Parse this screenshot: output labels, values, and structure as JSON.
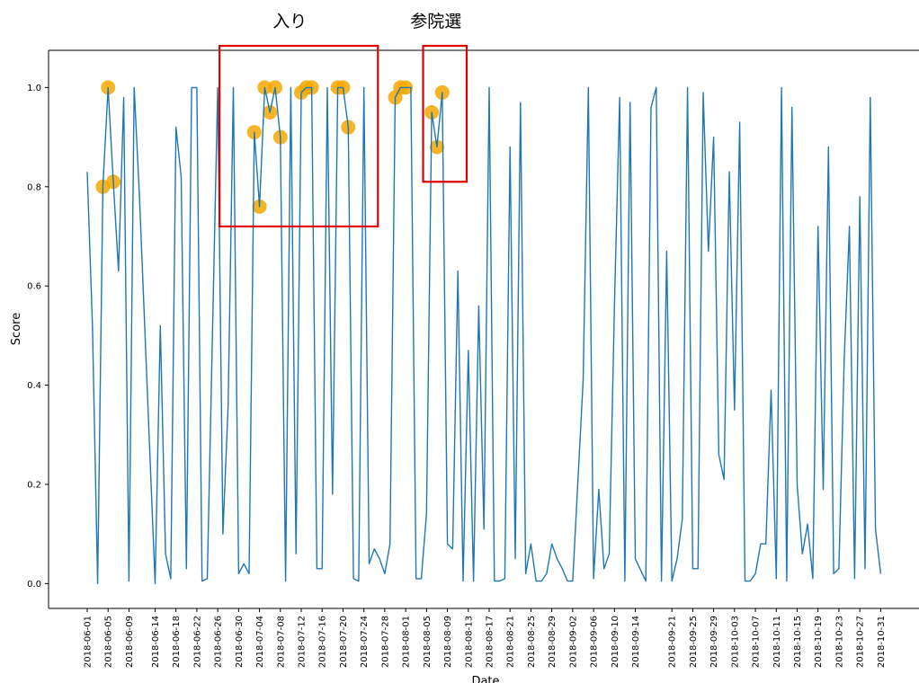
{
  "chart_data": {
    "type": "line",
    "title": "",
    "xlabel": "Date",
    "ylabel": "Score",
    "x_start": "2018-06-01",
    "x_end": "2018-11-02",
    "ylim": [
      -0.05,
      1.075
    ],
    "grid": false,
    "legend": "none",
    "line_color": "#1f77b4",
    "highlight_color": "#f5a800",
    "box_color": "#e00000",
    "x_ticks": [
      "2018-06-01",
      "2018-06-05",
      "2018-06-09",
      "2018-06-14",
      "2018-06-18",
      "2018-06-22",
      "2018-06-26",
      "2018-06-30",
      "2018-07-04",
      "2018-07-08",
      "2018-07-12",
      "2018-07-16",
      "2018-07-20",
      "2018-07-24",
      "2018-07-28",
      "2018-08-01",
      "2018-08-05",
      "2018-08-09",
      "2018-08-13",
      "2018-08-17",
      "2018-08-21",
      "2018-08-25",
      "2018-08-29",
      "2018-09-02",
      "2018-09-06",
      "2018-09-10",
      "2018-09-14",
      "2018-09-21",
      "2018-09-25",
      "2018-09-29",
      "2018-10-03",
      "2018-10-07",
      "2018-10-11",
      "2018-10-15",
      "2018-10-19",
      "2018-10-23",
      "2018-10-27",
      "2018-10-31"
    ],
    "y_ticks": [
      "0.0",
      "0.2",
      "0.4",
      "0.6",
      "0.8",
      "1.0"
    ],
    "y_tick_values": [
      0,
      0.2,
      0.4,
      0.6,
      0.8,
      1.0
    ],
    "series": [
      {
        "values": [
          [
            "2018-06-01",
            0.83
          ],
          [
            "2018-06-02",
            0.52
          ],
          [
            "2018-06-03",
            0.0
          ],
          [
            "2018-06-04",
            0.8
          ],
          [
            "2018-06-05",
            1.0
          ],
          [
            "2018-06-06",
            0.81
          ],
          [
            "2018-06-07",
            0.63
          ],
          [
            "2018-06-08",
            0.98
          ],
          [
            "2018-06-09",
            0.005
          ],
          [
            "2018-06-10",
            1.0
          ],
          [
            "2018-06-11",
            0.78
          ],
          [
            "2018-06-12",
            0.52
          ],
          [
            "2018-06-14",
            0.0
          ],
          [
            "2018-06-15",
            0.52
          ],
          [
            "2018-06-16",
            0.06
          ],
          [
            "2018-06-17",
            0.01
          ],
          [
            "2018-06-18",
            0.92
          ],
          [
            "2018-06-19",
            0.82
          ],
          [
            "2018-06-20",
            0.03
          ],
          [
            "2018-06-21",
            1.0
          ],
          [
            "2018-06-22",
            1.0
          ],
          [
            "2018-06-23",
            0.005
          ],
          [
            "2018-06-24",
            0.01
          ],
          [
            "2018-06-26",
            1.0
          ],
          [
            "2018-06-27",
            0.1
          ],
          [
            "2018-06-28",
            0.36
          ],
          [
            "2018-06-29",
            1.0
          ],
          [
            "2018-06-30",
            0.02
          ],
          [
            "2018-07-01",
            0.04
          ],
          [
            "2018-07-02",
            0.02
          ],
          [
            "2018-07-03",
            0.91
          ],
          [
            "2018-07-04",
            0.76
          ],
          [
            "2018-07-05",
            1.0
          ],
          [
            "2018-07-06",
            0.95
          ],
          [
            "2018-07-07",
            1.0
          ],
          [
            "2018-07-08",
            0.9
          ],
          [
            "2018-07-09",
            0.005
          ],
          [
            "2018-07-10",
            1.0
          ],
          [
            "2018-07-11",
            0.06
          ],
          [
            "2018-07-12",
            0.99
          ],
          [
            "2018-07-13",
            1.0
          ],
          [
            "2018-07-14",
            1.0
          ],
          [
            "2018-07-15",
            0.03
          ],
          [
            "2018-07-16",
            0.03
          ],
          [
            "2018-07-17",
            1.0
          ],
          [
            "2018-07-18",
            0.18
          ],
          [
            "2018-07-19",
            1.0
          ],
          [
            "2018-07-20",
            1.0
          ],
          [
            "2018-07-21",
            0.92
          ],
          [
            "2018-07-22",
            0.01
          ],
          [
            "2018-07-23",
            0.005
          ],
          [
            "2018-07-24",
            1.0
          ],
          [
            "2018-07-25",
            0.04
          ],
          [
            "2018-07-26",
            0.07
          ],
          [
            "2018-07-27",
            0.05
          ],
          [
            "2018-07-28",
            0.02
          ],
          [
            "2018-07-29",
            0.08
          ],
          [
            "2018-07-30",
            0.98
          ],
          [
            "2018-07-31",
            1.0
          ],
          [
            "2018-08-01",
            1.0
          ],
          [
            "2018-08-02",
            1.0
          ],
          [
            "2018-08-03",
            0.01
          ],
          [
            "2018-08-04",
            0.01
          ],
          [
            "2018-08-05",
            0.14
          ],
          [
            "2018-08-06",
            0.95
          ],
          [
            "2018-08-07",
            0.88
          ],
          [
            "2018-08-08",
            0.99
          ],
          [
            "2018-08-09",
            0.08
          ],
          [
            "2018-08-10",
            0.07
          ],
          [
            "2018-08-11",
            0.63
          ],
          [
            "2018-08-12",
            0.005
          ],
          [
            "2018-08-13",
            0.47
          ],
          [
            "2018-08-14",
            0.005
          ],
          [
            "2018-08-15",
            0.56
          ],
          [
            "2018-08-16",
            0.11
          ],
          [
            "2018-08-17",
            1.0
          ],
          [
            "2018-08-18",
            0.005
          ],
          [
            "2018-08-19",
            0.005
          ],
          [
            "2018-08-20",
            0.01
          ],
          [
            "2018-08-21",
            0.88
          ],
          [
            "2018-08-22",
            0.05
          ],
          [
            "2018-08-23",
            0.97
          ],
          [
            "2018-08-24",
            0.02
          ],
          [
            "2018-08-25",
            0.08
          ],
          [
            "2018-08-26",
            0.005
          ],
          [
            "2018-08-27",
            0.005
          ],
          [
            "2018-08-28",
            0.02
          ],
          [
            "2018-08-29",
            0.08
          ],
          [
            "2018-08-30",
            0.05
          ],
          [
            "2018-08-31",
            0.03
          ],
          [
            "2018-09-01",
            0.005
          ],
          [
            "2018-09-02",
            0.005
          ],
          [
            "2018-09-04",
            0.41
          ],
          [
            "2018-09-05",
            1.0
          ],
          [
            "2018-09-06",
            0.01
          ],
          [
            "2018-09-07",
            0.19
          ],
          [
            "2018-09-08",
            0.03
          ],
          [
            "2018-09-09",
            0.06
          ],
          [
            "2018-09-10",
            0.56
          ],
          [
            "2018-09-11",
            0.98
          ],
          [
            "2018-09-12",
            0.005
          ],
          [
            "2018-09-13",
            0.97
          ],
          [
            "2018-09-14",
            0.05
          ],
          [
            "2018-09-16",
            0.005
          ],
          [
            "2018-09-17",
            0.96
          ],
          [
            "2018-09-18",
            1.0
          ],
          [
            "2018-09-19",
            0.005
          ],
          [
            "2018-09-20",
            0.67
          ],
          [
            "2018-09-21",
            0.005
          ],
          [
            "2018-09-22",
            0.05
          ],
          [
            "2018-09-23",
            0.13
          ],
          [
            "2018-09-24",
            1.0
          ],
          [
            "2018-09-25",
            0.03
          ],
          [
            "2018-09-26",
            0.03
          ],
          [
            "2018-09-27",
            0.99
          ],
          [
            "2018-09-28",
            0.67
          ],
          [
            "2018-09-29",
            0.9
          ],
          [
            "2018-09-30",
            0.26
          ],
          [
            "2018-10-01",
            0.21
          ],
          [
            "2018-10-02",
            0.83
          ],
          [
            "2018-10-03",
            0.35
          ],
          [
            "2018-10-04",
            0.93
          ],
          [
            "2018-10-05",
            0.005
          ],
          [
            "2018-10-06",
            0.005
          ],
          [
            "2018-10-07",
            0.02
          ],
          [
            "2018-10-08",
            0.08
          ],
          [
            "2018-10-09",
            0.08
          ],
          [
            "2018-10-10",
            0.39
          ],
          [
            "2018-10-11",
            0.01
          ],
          [
            "2018-10-12",
            1.0
          ],
          [
            "2018-10-13",
            0.005
          ],
          [
            "2018-10-14",
            0.96
          ],
          [
            "2018-10-15",
            0.2
          ],
          [
            "2018-10-16",
            0.06
          ],
          [
            "2018-10-17",
            0.12
          ],
          [
            "2018-10-18",
            0.01
          ],
          [
            "2018-10-19",
            0.72
          ],
          [
            "2018-10-20",
            0.19
          ],
          [
            "2018-10-21",
            0.88
          ],
          [
            "2018-10-22",
            0.02
          ],
          [
            "2018-10-23",
            0.03
          ],
          [
            "2018-10-24",
            0.45
          ],
          [
            "2018-10-25",
            0.72
          ],
          [
            "2018-10-26",
            0.01
          ],
          [
            "2018-10-27",
            0.78
          ],
          [
            "2018-10-28",
            0.03
          ],
          [
            "2018-10-29",
            0.98
          ],
          [
            "2018-10-30",
            0.11
          ],
          [
            "2018-10-31",
            0.02
          ]
        ]
      }
    ],
    "highlighted_points": [
      [
        "2018-06-04",
        0.8
      ],
      [
        "2018-06-05",
        1.0
      ],
      [
        "2018-06-06",
        0.81
      ],
      [
        "2018-07-03",
        0.91
      ],
      [
        "2018-07-04",
        0.76
      ],
      [
        "2018-07-05",
        1.0
      ],
      [
        "2018-07-06",
        0.95
      ],
      [
        "2018-07-07",
        1.0
      ],
      [
        "2018-07-08",
        0.9
      ],
      [
        "2018-07-12",
        0.99
      ],
      [
        "2018-07-13",
        1.0
      ],
      [
        "2018-07-14",
        1.0
      ],
      [
        "2018-07-19",
        1.0
      ],
      [
        "2018-07-20",
        1.0
      ],
      [
        "2018-07-21",
        0.92
      ],
      [
        "2018-07-30",
        0.98
      ],
      [
        "2018-07-31",
        1.0
      ],
      [
        "2018-08-01",
        1.0
      ],
      [
        "2018-08-06",
        0.95
      ],
      [
        "2018-08-07",
        0.88
      ],
      [
        "2018-08-08",
        0.99
      ]
    ],
    "annotations": [
      {
        "label": "入り",
        "x_range": [
          "2018-06-26",
          "2018-07-26"
        ],
        "y_range": [
          0.72,
          1.075
        ]
      },
      {
        "label": "参院選",
        "x_range": [
          "2018-08-04",
          "2018-08-12"
        ],
        "y_range": [
          0.81,
          1.075
        ]
      }
    ]
  }
}
